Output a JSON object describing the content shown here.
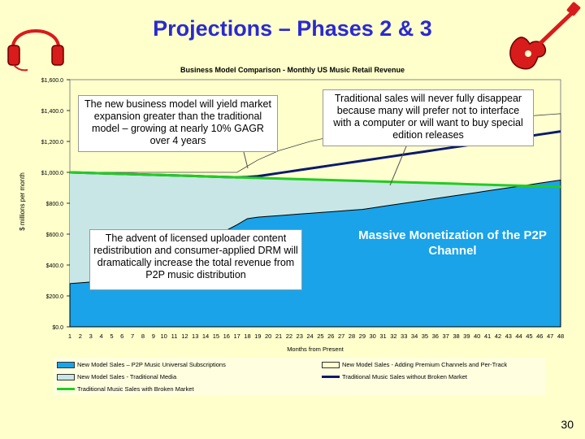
{
  "slide": {
    "title": "Projections – Phases 2 & 3",
    "page_number": "30"
  },
  "icons": {
    "headphones": "headphones-icon",
    "guitar": "guitar-icon"
  },
  "colors": {
    "title": "#2a2ad0",
    "background": "#ffffcc",
    "p2p_area": "#1aa3e8",
    "premium_area": "#ffffd0",
    "traditional_area": "#c8e6e6",
    "without_broken_line": "#0b1a6b",
    "with_broken_line": "#22cc22"
  },
  "callouts": {
    "expansion": "The new business model will yield market expansion greater than the traditional model – growing at nearly 10% GAGR over 4 years",
    "traditional": "Traditional sales will never fully disappear because many will prefer not to interface with a computer or will want to buy special edition releases",
    "uploader": "The advent of licensed uploader content redistribution and consumer-applied DRM will dramatically increase the total revenue from P2P music distribution",
    "monetization": "Massive Monetization of the P2P Channel"
  },
  "chart_data": {
    "type": "area",
    "title": "Business Model Comparison - Monthly US Music Retail Revenue",
    "xlabel": "Months from Present",
    "ylabel": "$ millions per month",
    "ylim": [
      0,
      1600
    ],
    "y_ticks": [
      "$0.0",
      "$200.0",
      "$400.0",
      "$600.0",
      "$800.0",
      "$1,000.0",
      "$1,200.0",
      "$1,400.0",
      "$1,600.0"
    ],
    "x": [
      1,
      2,
      3,
      4,
      5,
      6,
      7,
      8,
      9,
      10,
      11,
      12,
      13,
      14,
      15,
      16,
      17,
      18,
      19,
      20,
      21,
      22,
      23,
      24,
      25,
      26,
      27,
      28,
      29,
      30,
      31,
      32,
      33,
      34,
      35,
      36,
      37,
      38,
      39,
      40,
      41,
      42,
      43,
      44,
      45,
      46,
      47,
      48
    ],
    "series": [
      {
        "name": "New Model Sales – P2P Music Universal Subscriptions",
        "kind": "area",
        "values": [
          280,
          285,
          290,
          300,
          310,
          330,
          350,
          375,
          400,
          430,
          460,
          490,
          520,
          555,
          590,
          625,
          660,
          700,
          710,
          715,
          720,
          725,
          730,
          735,
          740,
          745,
          750,
          755,
          760,
          770,
          780,
          790,
          800,
          810,
          820,
          830,
          840,
          850,
          860,
          870,
          880,
          890,
          900,
          910,
          920,
          930,
          940,
          950
        ]
      },
      {
        "name": "New Model Sales - Traditional Media",
        "kind": "area",
        "values": [
          1000,
          998,
          996,
          994,
          992,
          990,
          988,
          986,
          984,
          982,
          980,
          978,
          976,
          974,
          972,
          970,
          968,
          966,
          964,
          962,
          960,
          958,
          956,
          954,
          952,
          950,
          948,
          946,
          944,
          942,
          940,
          938,
          936,
          934,
          932,
          930,
          928,
          926,
          924,
          922,
          920,
          918,
          916,
          914,
          912,
          910,
          908,
          906
        ]
      },
      {
        "name": "New Model Sales - Adding Premium Channels and Per-Track",
        "kind": "area",
        "values": [
          1000,
          1000,
          1000,
          1000,
          1000,
          1000,
          1000,
          1000,
          1000,
          1000,
          1000,
          1000,
          1000,
          1000,
          1000,
          1000,
          1000,
          1040,
          1080,
          1110,
          1140,
          1160,
          1180,
          1200,
          1215,
          1230,
          1245,
          1260,
          1270,
          1280,
          1290,
          1300,
          1305,
          1310,
          1315,
          1320,
          1325,
          1330,
          1335,
          1340,
          1345,
          1350,
          1355,
          1360,
          1365,
          1370,
          1375,
          1380
        ]
      },
      {
        "name": "Traditional Music Sales without Broken Market",
        "kind": "line",
        "values": [
          1000,
          998,
          996,
          994,
          992,
          990,
          988,
          986,
          984,
          982,
          980,
          978,
          976,
          974,
          972,
          970,
          968,
          970,
          975,
          985,
          995,
          1005,
          1015,
          1025,
          1035,
          1045,
          1055,
          1065,
          1075,
          1085,
          1095,
          1105,
          1115,
          1125,
          1135,
          1145,
          1155,
          1165,
          1175,
          1185,
          1195,
          1205,
          1215,
          1225,
          1235,
          1245,
          1255,
          1265
        ]
      },
      {
        "name": "Traditional Music Sales with Broken Market",
        "kind": "line",
        "values": [
          1000,
          998,
          996,
          994,
          992,
          990,
          988,
          986,
          984,
          982,
          980,
          978,
          976,
          974,
          972,
          970,
          968,
          966,
          964,
          962,
          960,
          958,
          956,
          954,
          952,
          950,
          948,
          946,
          944,
          942,
          940,
          938,
          936,
          934,
          932,
          930,
          928,
          926,
          924,
          922,
          920,
          918,
          916,
          914,
          912,
          910,
          908,
          906
        ]
      }
    ],
    "legend": [
      "New Model Sales – P2P Music Universal Subscriptions",
      "New Model Sales - Adding Premium Channels and Per-Track",
      "New Model Sales - Traditional Media",
      "Traditional Music Sales without Broken Market",
      "Traditional Music Sales with Broken Market"
    ],
    "legend_placement": "bottom",
    "grid": false
  }
}
